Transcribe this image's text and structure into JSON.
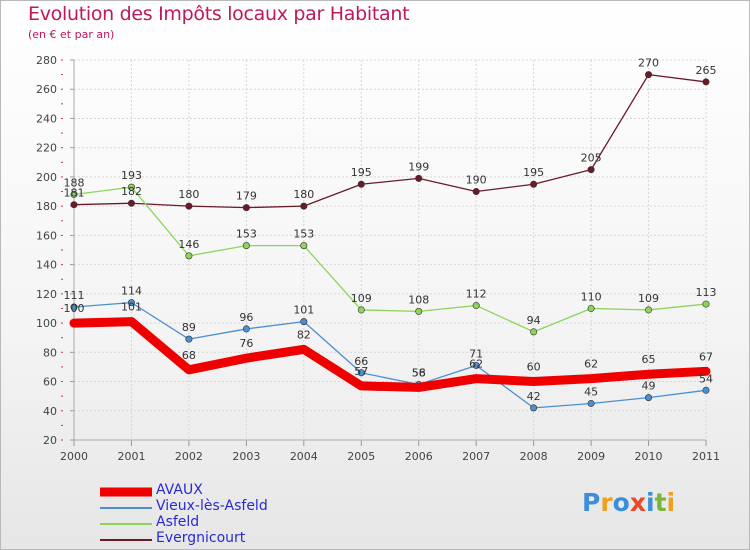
{
  "header": {
    "title": "Evolution des Impôts locaux par Habitant",
    "subtitle": "(en € et par an)"
  },
  "logo": {
    "text": "Proxiti",
    "letters": [
      "P",
      "r",
      "o",
      "x",
      "i",
      "t",
      "i"
    ],
    "colors": [
      "#3a8fd8",
      "#f0a020",
      "#3a8fd8",
      "#e84a2a",
      "#3a8fd8",
      "#7ab63c",
      "#f0a020"
    ]
  },
  "chart_data": {
    "type": "line",
    "title": "Evolution des Impôts locaux par Habitant",
    "subtitle": "(en € et par an)",
    "xlabel": "",
    "ylabel": "",
    "ylim": [
      20,
      280
    ],
    "yticks": [
      20,
      40,
      60,
      80,
      100,
      120,
      140,
      160,
      180,
      200,
      220,
      240,
      260,
      280
    ],
    "grid": true,
    "legend_position": "bottom-left",
    "x": [
      "2000",
      "2001",
      "2002",
      "2003",
      "2004",
      "2005",
      "2006",
      "2007",
      "2008",
      "2009",
      "2010",
      "2011"
    ],
    "series": [
      {
        "name": "Evergnicourt",
        "color": "#6b1a2a",
        "width": 1.3,
        "values": [
          181,
          182,
          180,
          179,
          180,
          195,
          199,
          190,
          195,
          205,
          270,
          265
        ]
      },
      {
        "name": "Asfeld",
        "color": "#8ed45a",
        "width": 1.3,
        "values": [
          188,
          193,
          146,
          153,
          153,
          109,
          108,
          112,
          94,
          110,
          109,
          113
        ]
      },
      {
        "name": "Vieux-lès-Asfeld",
        "color": "#4b8fd0",
        "width": 1.3,
        "values": [
          111,
          114,
          89,
          96,
          101,
          66,
          58,
          71,
          42,
          45,
          49,
          54
        ]
      },
      {
        "name": "AVAUX",
        "color": "#ee0000",
        "width": 9,
        "values": [
          100,
          101,
          68,
          76,
          82,
          57,
          56,
          62,
          60,
          62,
          65,
          67
        ]
      }
    ]
  }
}
